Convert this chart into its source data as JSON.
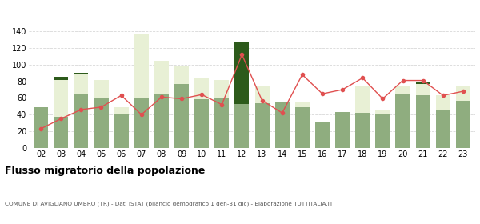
{
  "years": [
    "02",
    "03",
    "04",
    "05",
    "06",
    "07",
    "08",
    "09",
    "10",
    "11",
    "12",
    "13",
    "14",
    "15",
    "16",
    "17",
    "18",
    "19",
    "20",
    "21",
    "22",
    "23"
  ],
  "iscritti_altri_comuni": [
    49,
    37,
    64,
    60,
    41,
    60,
    65,
    77,
    58,
    60,
    53,
    54,
    55,
    49,
    32,
    43,
    42,
    40,
    65,
    63,
    46,
    57
  ],
  "iscritti_estero": [
    0,
    45,
    24,
    22,
    8,
    77,
    40,
    22,
    26,
    22,
    0,
    21,
    1,
    7,
    0,
    0,
    32,
    5,
    9,
    14,
    17,
    18
  ],
  "iscritti_altri": [
    0,
    3,
    2,
    0,
    0,
    0,
    0,
    0,
    0,
    0,
    75,
    0,
    0,
    0,
    0,
    0,
    0,
    0,
    0,
    3,
    0,
    0
  ],
  "cancellati": [
    23,
    35,
    46,
    49,
    63,
    40,
    61,
    59,
    64,
    52,
    112,
    57,
    42,
    88,
    65,
    70,
    84,
    59,
    81,
    81,
    63,
    68
  ],
  "color_altri_comuni": "#8fad7f",
  "color_estero": "#e8f0d5",
  "color_altri": "#2d5a1b",
  "color_cancellati": "#e05050",
  "ylim": [
    0,
    140
  ],
  "yticks": [
    0,
    20,
    40,
    60,
    80,
    100,
    120,
    140
  ],
  "title": "Flusso migratorio della popolazione",
  "subtitle": "COMUNE DI AVIGLIANO UMBRO (TR) - Dati ISTAT (bilancio demografico 1 gen-31 dic) - Elaborazione TUTTITALIA.IT",
  "bg_color": "#ffffff",
  "grid_color": "#d8d8d8"
}
